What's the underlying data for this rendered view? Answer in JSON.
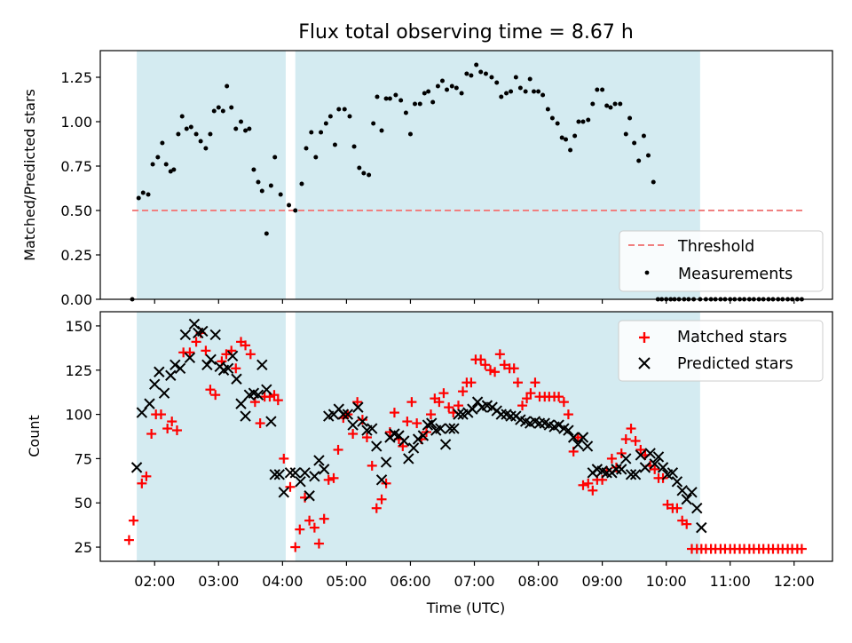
{
  "chart_data": {
    "title": "Flux total observing time = 8.67 h",
    "xlabel": "Time (UTC)",
    "x_unit": "hours UTC",
    "xlim": [
      1.15,
      12.6
    ],
    "x_ticks": [
      2,
      3,
      4,
      5,
      6,
      7,
      8,
      9,
      10,
      11,
      12
    ],
    "x_tick_labels": [
      "02:00",
      "03:00",
      "04:00",
      "05:00",
      "06:00",
      "07:00",
      "08:00",
      "09:00",
      "10:00",
      "11:00",
      "12:00"
    ],
    "shaded_intervals": [
      [
        1.72,
        4.05
      ],
      [
        4.2,
        10.53
      ]
    ],
    "shade_color": "#d4ebf1",
    "panels": [
      {
        "id": "ratio",
        "type": "scatter",
        "ylabel": "Matched/Predicted stars",
        "ylim": [
          0,
          1.4
        ],
        "y_ticks": [
          0,
          0.25,
          0.5,
          0.75,
          1.0,
          1.25
        ],
        "y_tick_labels": [
          "0.00",
          "0.25",
          "0.50",
          "0.75",
          "1.00",
          "1.25"
        ],
        "legend": {
          "position": "lower right",
          "entries": [
            "Threshold",
            "Measurements"
          ]
        },
        "threshold": {
          "name": "Threshold",
          "value": 0.5,
          "x_range": [
            1.65,
            12.15
          ],
          "color": "#f08080",
          "style": "dashed"
        },
        "series": [
          {
            "name": "Measurements",
            "color": "#000000",
            "marker": "dot",
            "x": [
              1.65,
              1.75,
              1.82,
              1.9,
              1.97,
              2.05,
              2.12,
              2.18,
              2.25,
              2.3,
              2.37,
              2.43,
              2.5,
              2.57,
              2.65,
              2.72,
              2.8,
              2.87,
              2.93,
              3.0,
              3.07,
              3.13,
              3.2,
              3.27,
              3.35,
              3.42,
              3.48,
              3.55,
              3.62,
              3.68,
              3.75,
              3.82,
              3.88,
              3.97,
              4.1,
              4.2,
              4.3,
              4.37,
              4.45,
              4.52,
              4.6,
              4.68,
              4.75,
              4.82,
              4.88,
              4.97,
              5.05,
              5.12,
              5.2,
              5.27,
              5.35,
              5.42,
              5.48,
              5.55,
              5.62,
              5.68,
              5.77,
              5.85,
              5.93,
              6.0,
              6.07,
              6.15,
              6.22,
              6.28,
              6.35,
              6.43,
              6.5,
              6.57,
              6.65,
              6.72,
              6.8,
              6.88,
              6.95,
              7.03,
              7.1,
              7.18,
              7.27,
              7.35,
              7.42,
              7.5,
              7.57,
              7.65,
              7.72,
              7.8,
              7.87,
              7.93,
              8.0,
              8.07,
              8.15,
              8.22,
              8.3,
              8.37,
              8.43,
              8.5,
              8.57,
              8.63,
              8.7,
              8.78,
              8.85,
              8.92,
              9.0,
              9.07,
              9.13,
              9.2,
              9.28,
              9.37,
              9.43,
              9.5,
              9.57,
              9.65,
              9.72,
              9.8,
              9.87,
              9.93,
              10.0,
              10.07,
              10.13,
              10.2,
              10.28,
              10.35,
              10.43,
              10.53,
              10.62,
              10.7,
              10.77,
              10.85,
              10.92,
              11.0,
              11.07,
              11.15,
              11.22,
              11.3,
              11.37,
              11.45,
              11.52,
              11.6,
              11.67,
              11.75,
              11.82,
              11.9,
              11.97,
              12.05,
              12.12
            ],
            "y": [
              0.0,
              0.57,
              0.6,
              0.59,
              0.76,
              0.8,
              0.88,
              0.76,
              0.72,
              0.73,
              0.93,
              1.03,
              0.96,
              0.97,
              0.93,
              0.89,
              0.85,
              0.93,
              1.06,
              1.08,
              1.06,
              1.2,
              1.08,
              0.96,
              1.0,
              0.95,
              0.96,
              0.73,
              0.66,
              0.61,
              0.37,
              0.64,
              0.8,
              0.59,
              0.53,
              0.5,
              0.65,
              0.85,
              0.94,
              0.8,
              0.94,
              0.99,
              1.03,
              0.87,
              1.07,
              1.07,
              1.03,
              0.86,
              0.74,
              0.71,
              0.7,
              0.99,
              1.14,
              0.95,
              1.13,
              1.13,
              1.15,
              1.12,
              1.05,
              0.93,
              1.1,
              1.1,
              1.16,
              1.17,
              1.11,
              1.2,
              1.23,
              1.18,
              1.2,
              1.19,
              1.16,
              1.27,
              1.26,
              1.32,
              1.28,
              1.27,
              1.25,
              1.22,
              1.14,
              1.16,
              1.17,
              1.25,
              1.19,
              1.17,
              1.24,
              1.17,
              1.17,
              1.15,
              1.07,
              1.02,
              0.99,
              0.91,
              0.9,
              0.84,
              0.92,
              1.0,
              1.0,
              1.01,
              1.1,
              1.18,
              1.18,
              1.09,
              1.08,
              1.1,
              1.1,
              0.93,
              1.02,
              0.88,
              0.78,
              0.92,
              0.81,
              0.66,
              0.0,
              0.0,
              0.0,
              0.0,
              0.0,
              0.0,
              0.0,
              0.0,
              0.0,
              0.0,
              0.0,
              0.0,
              0.0,
              0.0,
              0.0,
              0.0,
              0.0,
              0.0,
              0.0,
              0.0,
              0.0,
              0.0,
              0.0,
              0.0,
              0.0,
              0.0,
              0.0,
              0.0,
              0.0,
              0.0,
              0.0
            ]
          }
        ]
      },
      {
        "id": "count",
        "type": "scatter",
        "ylabel": "Count",
        "ylim": [
          17,
          158
        ],
        "y_ticks": [
          25,
          50,
          75,
          100,
          125,
          150
        ],
        "y_tick_labels": [
          "25",
          "50",
          "75",
          "100",
          "125",
          "150"
        ],
        "legend": {
          "position": "upper right",
          "entries": [
            "Matched stars",
            "Predicted stars"
          ]
        },
        "series": [
          {
            "name": "Matched stars",
            "color": "#ff0000",
            "marker": "plus",
            "x": [
              1.6,
              1.67,
              1.8,
              1.87,
              1.95,
              2.02,
              2.1,
              2.2,
              2.27,
              2.35,
              2.45,
              2.55,
              2.65,
              2.72,
              2.8,
              2.87,
              2.95,
              3.05,
              3.12,
              3.2,
              3.27,
              3.35,
              3.42,
              3.5,
              3.57,
              3.65,
              3.72,
              3.8,
              3.87,
              3.93,
              4.02,
              4.12,
              4.2,
              4.27,
              4.35,
              4.42,
              4.5,
              4.57,
              4.65,
              4.72,
              4.8,
              4.87,
              4.95,
              5.02,
              5.1,
              5.17,
              5.25,
              5.32,
              5.4,
              5.47,
              5.55,
              5.62,
              5.68,
              5.75,
              5.82,
              5.88,
              5.95,
              6.02,
              6.1,
              6.17,
              6.25,
              6.32,
              6.38,
              6.45,
              6.52,
              6.6,
              6.67,
              6.75,
              6.82,
              6.88,
              6.95,
              7.02,
              7.1,
              7.17,
              7.25,
              7.32,
              7.4,
              7.47,
              7.55,
              7.62,
              7.68,
              7.75,
              7.82,
              7.88,
              7.95,
              8.02,
              8.1,
              8.17,
              8.25,
              8.32,
              8.4,
              8.47,
              8.55,
              8.62,
              8.7,
              8.78,
              8.85,
              8.92,
              9.0,
              9.07,
              9.15,
              9.22,
              9.3,
              9.37,
              9.45,
              9.52,
              9.6,
              9.67,
              9.75,
              9.82,
              9.88,
              9.95,
              10.02,
              10.1,
              10.17,
              10.25,
              10.32,
              10.4,
              10.48,
              10.55,
              10.62,
              10.7,
              10.77,
              10.85,
              10.92,
              11.0,
              11.07,
              11.15,
              11.22,
              11.3,
              11.37,
              11.45,
              11.52,
              11.6,
              11.67,
              11.75,
              11.82,
              11.9,
              11.97,
              12.05,
              12.12
            ],
            "y": [
              29,
              40,
              61,
              65,
              89,
              100,
              100,
              92,
              96,
              91,
              135,
              135,
              141,
              146,
              136,
              114,
              111,
              130,
              134,
              136,
              126,
              141,
              139,
              134,
              107,
              95,
              110,
              110,
              111,
              108,
              75,
              59,
              25,
              35,
              53,
              40,
              36,
              27,
              41,
              63,
              64,
              80,
              98,
              100,
              89,
              107,
              97,
              87,
              71,
              47,
              52,
              61,
              90,
              101,
              86,
              82,
              96,
              107,
              95,
              86,
              90,
              100,
              109,
              107,
              112,
              104,
              101,
              105,
              113,
              118,
              118,
              131,
              131,
              128,
              125,
              124,
              134,
              128,
              126,
              126,
              118,
              105,
              109,
              112,
              118,
              110,
              110,
              110,
              110,
              110,
              107,
              100,
              79,
              87,
              60,
              61,
              57,
              63,
              63,
              68,
              75,
              70,
              78,
              86,
              92,
              85,
              80,
              77,
              71,
              69,
              64,
              64,
              49,
              47,
              47,
              40,
              38,
              24,
              24,
              24,
              24,
              24,
              24,
              24,
              24,
              24,
              24,
              24,
              24,
              24,
              24,
              24,
              24,
              24,
              24,
              24,
              24,
              24,
              24,
              24,
              24
            ]
          },
          {
            "name": "Predicted stars",
            "color": "#000000",
            "marker": "x",
            "x": [
              1.72,
              1.8,
              1.92,
              2.0,
              2.07,
              2.15,
              2.25,
              2.32,
              2.4,
              2.48,
              2.55,
              2.62,
              2.68,
              2.75,
              2.82,
              2.88,
              2.95,
              3.02,
              3.08,
              3.15,
              3.22,
              3.28,
              3.35,
              3.42,
              3.48,
              3.55,
              3.62,
              3.68,
              3.75,
              3.82,
              3.88,
              3.95,
              4.02,
              4.12,
              4.2,
              4.28,
              4.35,
              4.42,
              4.5,
              4.57,
              4.65,
              4.72,
              4.8,
              4.88,
              4.95,
              5.02,
              5.1,
              5.18,
              5.25,
              5.32,
              5.4,
              5.47,
              5.55,
              5.62,
              5.68,
              5.75,
              5.82,
              5.9,
              5.97,
              6.05,
              6.12,
              6.2,
              6.27,
              6.33,
              6.4,
              6.47,
              6.55,
              6.62,
              6.68,
              6.75,
              6.82,
              6.9,
              6.97,
              7.05,
              7.12,
              7.2,
              7.28,
              7.35,
              7.42,
              7.5,
              7.57,
              7.65,
              7.72,
              7.8,
              7.87,
              7.95,
              8.02,
              8.1,
              8.17,
              8.25,
              8.32,
              8.4,
              8.47,
              8.55,
              8.62,
              8.7,
              8.77,
              8.85,
              8.92,
              9.0,
              9.07,
              9.15,
              9.22,
              9.3,
              9.37,
              9.45,
              9.52,
              9.6,
              9.67,
              9.75,
              9.82,
              9.88,
              9.95,
              10.02,
              10.1,
              10.17,
              10.25,
              10.32,
              10.4,
              10.48,
              10.55
            ],
            "y": [
              70,
              101,
              106,
              117,
              124,
              112,
              122,
              128,
              126,
              145,
              132,
              151,
              146,
              147,
              128,
              131,
              145,
              127,
              125,
              126,
              133,
              120,
              106,
              99,
              111,
              112,
              111,
              128,
              114,
              96,
              66,
              66,
              56,
              67,
              67,
              62,
              67,
              54,
              65,
              74,
              69,
              99,
              100,
              103,
              100,
              100,
              94,
              104,
              96,
              91,
              92,
              82,
              63,
              73,
              87,
              89,
              88,
              85,
              75,
              81,
              86,
              88,
              94,
              95,
              91,
              92,
              83,
              92,
              92,
              100,
              100,
              101,
              103,
              107,
              104,
              105,
              104,
              102,
              100,
              100,
              99,
              99,
              97,
              96,
              95,
              96,
              95,
              95,
              94,
              93,
              94,
              92,
              91,
              87,
              83,
              87,
              82,
              67,
              69,
              68,
              67,
              67,
              69,
              69,
              75,
              66,
              66,
              77,
              70,
              78,
              72,
              76,
              70,
              66,
              67,
              62,
              57,
              52,
              56,
              47,
              36
            ]
          }
        ]
      }
    ]
  }
}
